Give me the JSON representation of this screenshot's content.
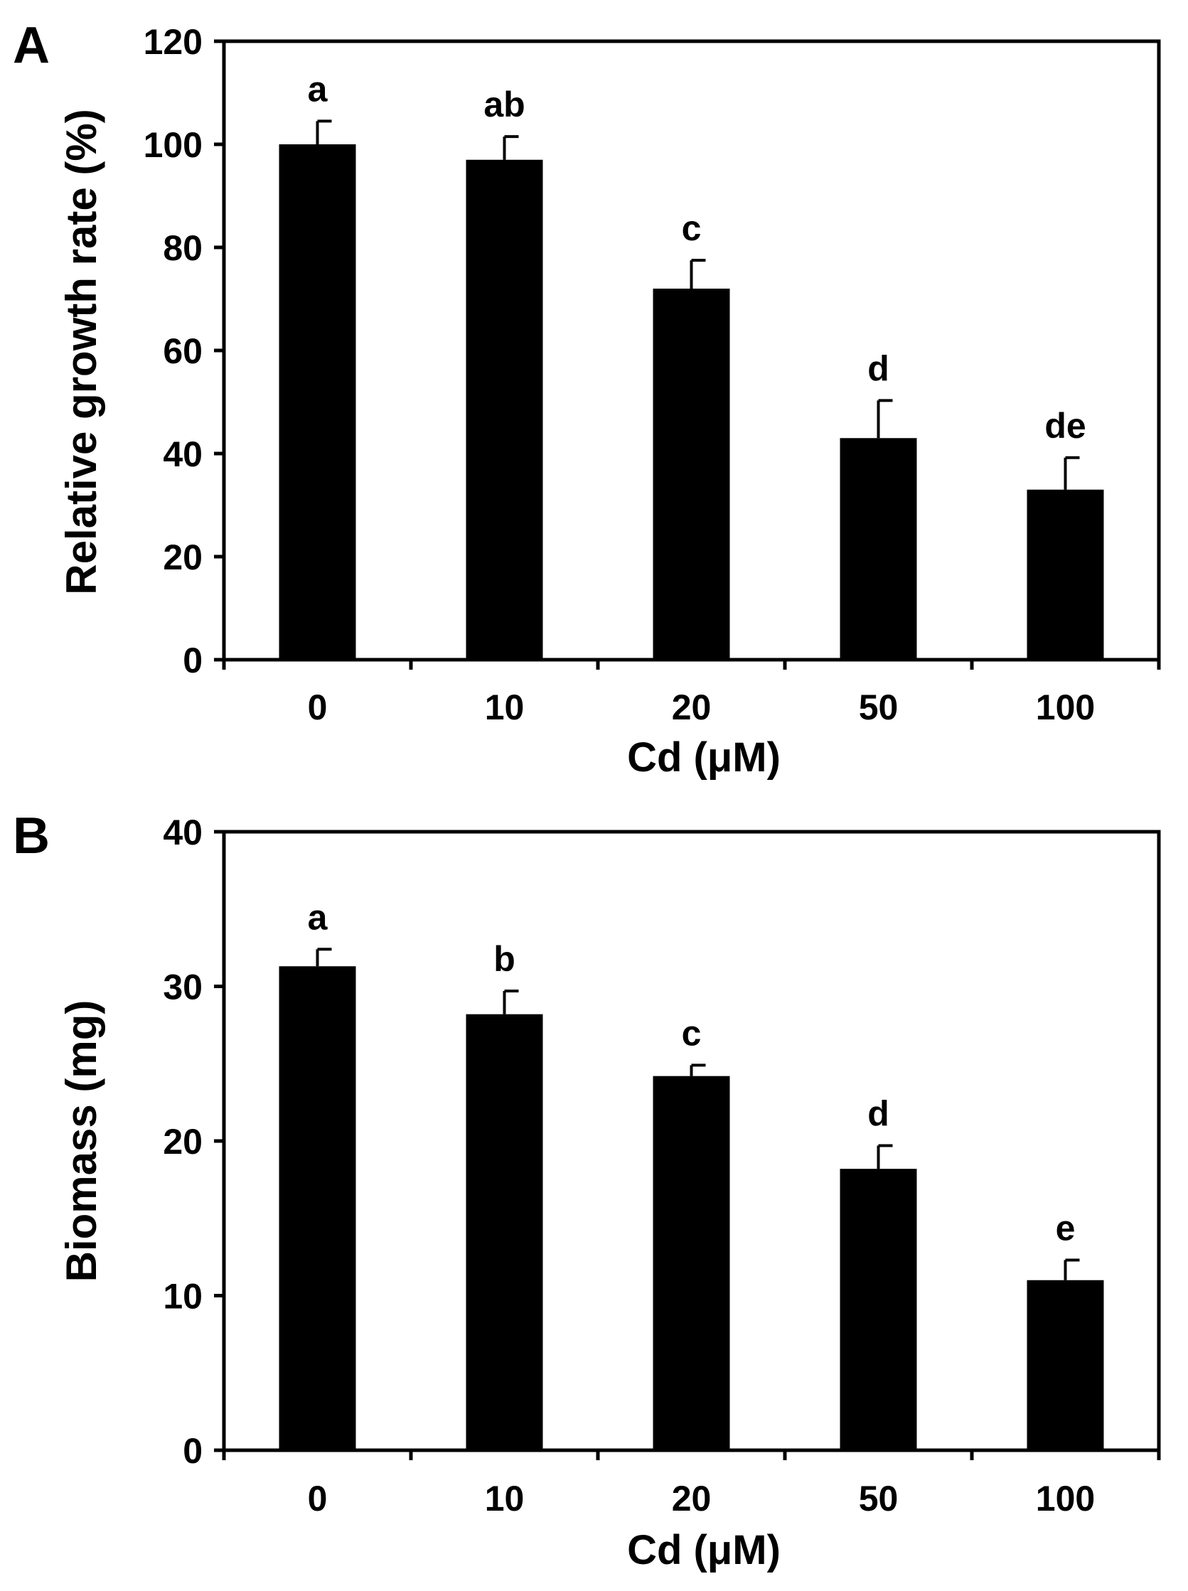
{
  "chart_data": [
    {
      "panel": "A",
      "type": "bar",
      "categories": [
        "0",
        "10",
        "20",
        "50",
        "100"
      ],
      "values": [
        100,
        97,
        72,
        43,
        33
      ],
      "errors": [
        4.5,
        4.5,
        5.5,
        7.3,
        6.2
      ],
      "significance": [
        "a",
        "ab",
        "c",
        "d",
        "de"
      ],
      "xlabel": "Cd (μM)",
      "ylabel": "Relative growth rate (%)",
      "ylim": [
        0,
        120
      ],
      "yticks": [
        0,
        20,
        40,
        60,
        80,
        100,
        120
      ],
      "bar_color": "#000000"
    },
    {
      "panel": "B",
      "type": "bar",
      "categories": [
        "0",
        "10",
        "20",
        "50",
        "100"
      ],
      "values": [
        31.3,
        28.2,
        24.2,
        18.2,
        11.0
      ],
      "errors": [
        1.1,
        1.5,
        0.7,
        1.5,
        1.3
      ],
      "significance": [
        "a",
        "b",
        "c",
        "d",
        "e"
      ],
      "xlabel": "Cd (μM)",
      "ylabel": "Biomass (mg)",
      "ylim": [
        0,
        40
      ],
      "yticks": [
        0,
        10,
        20,
        30,
        40
      ],
      "bar_color": "#000000"
    }
  ]
}
